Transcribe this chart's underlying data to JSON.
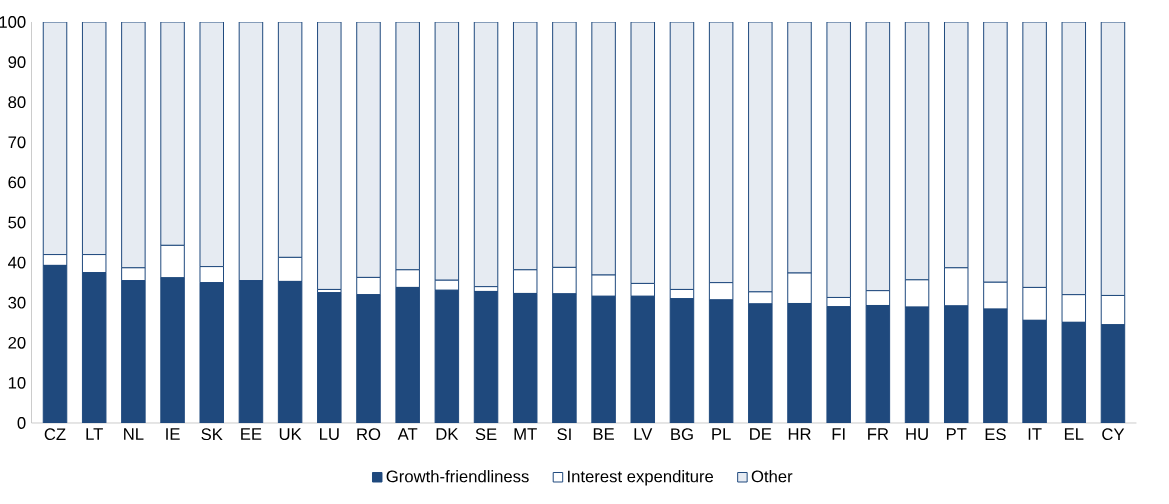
{
  "chart_data": {
    "type": "bar",
    "stacked": true,
    "categories": [
      "CZ",
      "LT",
      "NL",
      "IE",
      "SK",
      "EE",
      "UK",
      "LU",
      "RO",
      "AT",
      "DK",
      "SE",
      "MT",
      "SI",
      "BE",
      "LV",
      "BG",
      "PL",
      "DE",
      "HR",
      "FI",
      "FR",
      "HU",
      "PT",
      "ES",
      "IT",
      "EL",
      "CY"
    ],
    "series": [
      {
        "name": "Growth-friendliness",
        "color": "#1f497d",
        "values": [
          39.3,
          37.5,
          35.5,
          36.2,
          35.0,
          35.5,
          35.3,
          32.5,
          32.0,
          33.8,
          33.1,
          32.8,
          32.3,
          32.2,
          31.6,
          31.6,
          31.0,
          30.7,
          29.7,
          29.8,
          29.0,
          29.3,
          28.9,
          29.2,
          28.4,
          25.6,
          25.1,
          24.5
        ]
      },
      {
        "name": "Interest expenditure",
        "color": "#ffffff",
        "values": [
          2.7,
          4.5,
          3.2,
          8.1,
          4.0,
          null,
          6.0,
          0.8,
          4.3,
          4.4,
          2.5,
          1.2,
          5.9,
          6.6,
          5.3,
          3.2,
          2.3,
          4.3,
          3.0,
          7.6,
          2.3,
          3.7,
          6.8,
          9.5,
          6.7,
          8.2,
          6.9,
          7.3
        ]
      },
      {
        "name": "Other",
        "color": "#e6ebf2",
        "values": [
          58.0,
          58.0,
          61.3,
          55.7,
          61.0,
          64.5,
          58.7,
          66.7,
          63.7,
          61.8,
          64.4,
          66.0,
          61.8,
          61.2,
          63.1,
          65.2,
          66.7,
          65.0,
          67.3,
          62.6,
          68.7,
          67.0,
          64.3,
          61.3,
          64.9,
          66.2,
          68.0,
          68.2
        ]
      }
    ],
    "ylim": [
      0,
      100
    ],
    "yticks": [
      0,
      10,
      20,
      30,
      40,
      50,
      60,
      70,
      80,
      90,
      100
    ],
    "grid": false,
    "legend": "bottom"
  }
}
